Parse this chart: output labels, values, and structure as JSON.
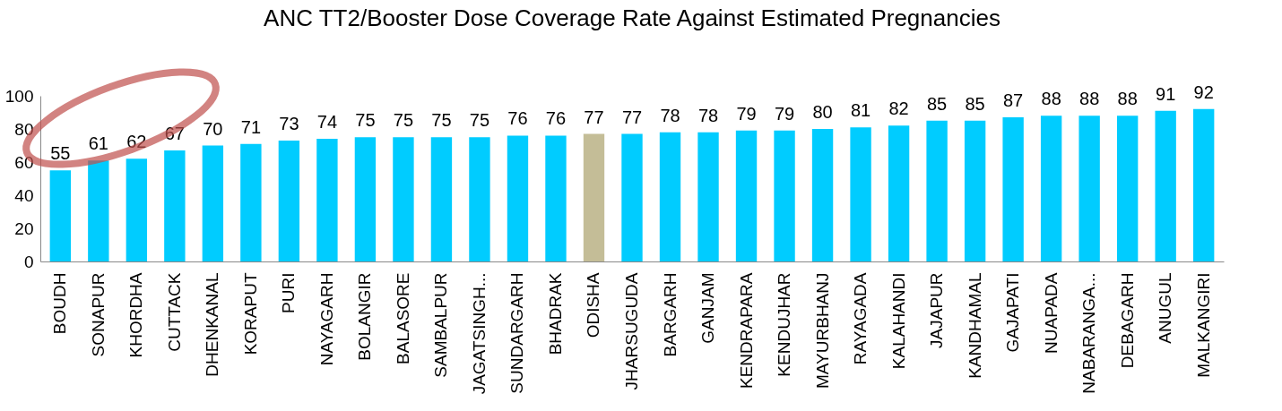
{
  "chart_data": {
    "type": "bar",
    "title": "ANC TT2/Booster Dose Coverage Rate Against Estimated Pregnancies",
    "categories": [
      "BOUDH",
      "SONAPUR",
      "KHORDHA",
      "CUTTACK",
      "DHENKANAL",
      "KORAPUT",
      "PURI",
      "NAYAGARH",
      "BOLANGIR",
      "BALASORE",
      "SAMBALPUR",
      "JAGATSINGH...",
      "SUNDARGARH",
      "BHADRAK",
      "ODISHA",
      "JHARSUGUDA",
      "BARGARH",
      "GANJAM",
      "KENDRAPARA",
      "KENDUJHAR",
      "MAYURBHANJ",
      "RAYAGADA",
      "KALAHANDI",
      "JAJAPUR",
      "KANDHAMAL",
      "GAJAPATI",
      "NUAPADA",
      "NABARANGA...",
      "DEBAGARH",
      "ANUGUL",
      "MALKANGIRI"
    ],
    "values": [
      55,
      61,
      62,
      67,
      70,
      71,
      73,
      74,
      75,
      75,
      75,
      75,
      76,
      76,
      77,
      77,
      78,
      78,
      79,
      79,
      80,
      81,
      82,
      85,
      85,
      87,
      88,
      88,
      88,
      91,
      92
    ],
    "colors": [
      "#00ccff",
      "#00ccff",
      "#00ccff",
      "#00ccff",
      "#00ccff",
      "#00ccff",
      "#00ccff",
      "#00ccff",
      "#00ccff",
      "#00ccff",
      "#00ccff",
      "#00ccff",
      "#00ccff",
      "#00ccff",
      "#c4bd97",
      "#00ccff",
      "#00ccff",
      "#00ccff",
      "#00ccff",
      "#00ccff",
      "#00ccff",
      "#00ccff",
      "#00ccff",
      "#00ccff",
      "#00ccff",
      "#00ccff",
      "#00ccff",
      "#00ccff",
      "#00ccff",
      "#00ccff",
      "#00ccff"
    ],
    "ylim": [
      0,
      100
    ],
    "yticks": [
      0,
      20,
      40,
      60,
      80,
      100
    ],
    "grid": false,
    "legend": false,
    "data_labels": true
  }
}
